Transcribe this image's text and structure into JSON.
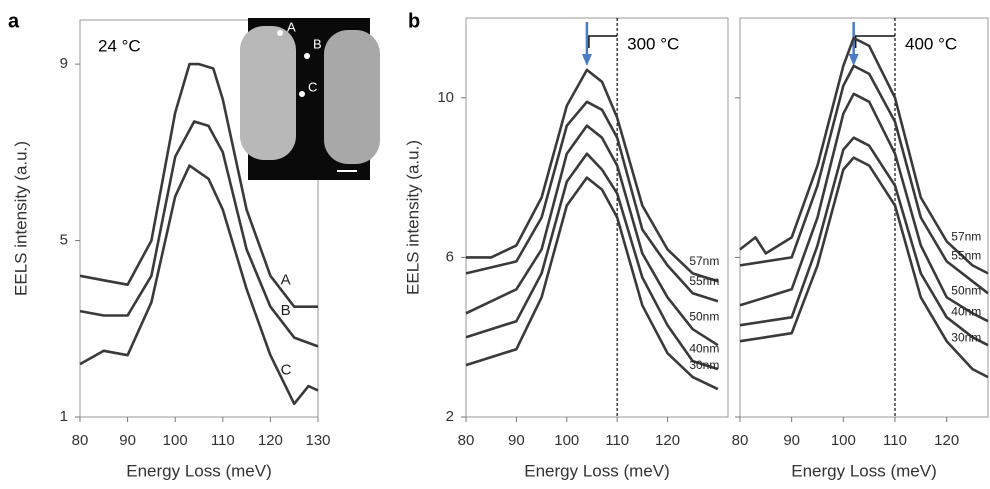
{
  "chart_data": [
    {
      "type": "line",
      "panel_label": "a",
      "annotation": "24 °C",
      "x_label": "Energy Loss (meV)",
      "y_label": "EELS intensity (a.u.)",
      "xlim": [
        80,
        130
      ],
      "xticks": [
        80,
        90,
        100,
        110,
        120,
        130
      ],
      "ylim": [
        1,
        10
      ],
      "yticks": [
        1,
        5,
        9
      ],
      "ytick_labels": true,
      "grid": false,
      "series": [
        {
          "name": "A",
          "color": "#3a3a3a",
          "x": [
            80,
            85,
            90,
            95,
            100,
            103,
            105,
            108,
            110,
            115,
            120,
            125,
            130
          ],
          "values": [
            4.2,
            4.1,
            4.0,
            5.0,
            7.9,
            9.0,
            9.0,
            8.9,
            8.2,
            5.7,
            4.2,
            3.5,
            3.5
          ]
        },
        {
          "name": "B",
          "color": "#3a3a3a",
          "x": [
            80,
            85,
            90,
            95,
            100,
            104,
            107,
            110,
            115,
            120,
            125,
            130
          ],
          "values": [
            3.4,
            3.3,
            3.3,
            4.2,
            6.9,
            7.7,
            7.6,
            7.0,
            4.8,
            3.5,
            2.8,
            2.6
          ]
        },
        {
          "name": "C",
          "color": "#3a3a3a",
          "x": [
            80,
            85,
            90,
            95,
            100,
            103,
            107,
            110,
            115,
            120,
            125,
            128,
            130
          ],
          "values": [
            2.2,
            2.5,
            2.4,
            3.6,
            6.0,
            6.7,
            6.4,
            5.7,
            3.9,
            2.4,
            1.3,
            1.7,
            1.6
          ]
        }
      ]
    },
    {
      "type": "line",
      "panel_label": "b",
      "annotation": "300 °C",
      "x_label": "Energy Loss (meV)",
      "y_label": "EELS intensity (a.u.)",
      "xlim": [
        80,
        132
      ],
      "xticks": [
        80,
        90,
        100,
        110,
        120
      ],
      "ylim": [
        2,
        12
      ],
      "yticks": [
        2,
        6,
        10
      ],
      "ytick_labels": true,
      "grid": false,
      "arrow_x": 104,
      "vline_x": 110,
      "arrow_color": "#4a7cc4",
      "series": [
        {
          "name": "57nm",
          "color": "#3a3a3a",
          "x": [
            80,
            85,
            90,
            95,
            100,
            104,
            107,
            110,
            115,
            120,
            125,
            130
          ],
          "values": [
            6.0,
            6.0,
            6.3,
            7.5,
            9.8,
            10.7,
            10.4,
            9.5,
            7.3,
            6.2,
            5.6,
            5.4
          ]
        },
        {
          "name": "55nm",
          "color": "#3a3a3a",
          "x": [
            80,
            90,
            95,
            100,
            104,
            107,
            110,
            115,
            120,
            125,
            130
          ],
          "values": [
            5.6,
            5.9,
            7.0,
            9.3,
            9.9,
            9.7,
            9.0,
            6.7,
            5.8,
            5.1,
            4.9
          ]
        },
        {
          "name": "50nm",
          "color": "#3a3a3a",
          "x": [
            80,
            90,
            95,
            100,
            104,
            107,
            110,
            115,
            120,
            125,
            130
          ],
          "values": [
            4.6,
            5.2,
            6.2,
            8.6,
            9.3,
            9.0,
            8.3,
            6.1,
            5.0,
            4.2,
            3.8
          ]
        },
        {
          "name": "40nm",
          "color": "#3a3a3a",
          "x": [
            80,
            90,
            95,
            100,
            104,
            107,
            110,
            115,
            120,
            125,
            130
          ],
          "values": [
            4.0,
            4.4,
            5.6,
            7.9,
            8.6,
            8.2,
            7.6,
            5.5,
            4.3,
            3.4,
            3.2
          ]
        },
        {
          "name": "30nm",
          "color": "#3a3a3a",
          "x": [
            80,
            90,
            95,
            100,
            104,
            107,
            110,
            115,
            120,
            125,
            130
          ],
          "values": [
            3.3,
            3.7,
            5.0,
            7.3,
            8.0,
            7.7,
            7.0,
            4.8,
            3.6,
            3.0,
            2.7
          ]
        }
      ]
    },
    {
      "type": "line",
      "annotation": "400 °C",
      "x_label": "Energy Loss (meV)",
      "xlim": [
        80,
        128
      ],
      "xticks": [
        80,
        90,
        100,
        110,
        120
      ],
      "ylim": [
        2,
        12
      ],
      "yticks": [
        2,
        6,
        10
      ],
      "ytick_labels": false,
      "grid": false,
      "arrow_x": 102,
      "vline_x": 110,
      "arrow_color": "#4a7cc4",
      "series": [
        {
          "name": "57nm",
          "color": "#3a3a3a",
          "x": [
            80,
            83,
            85,
            90,
            95,
            100,
            102,
            105,
            110,
            115,
            120,
            125,
            128
          ],
          "values": [
            6.2,
            6.5,
            6.1,
            6.5,
            8.3,
            10.8,
            11.5,
            11.3,
            10.0,
            7.5,
            6.4,
            5.8,
            5.6
          ]
        },
        {
          "name": "55nm",
          "color": "#3a3a3a",
          "x": [
            80,
            90,
            95,
            100,
            102,
            105,
            110,
            115,
            120,
            125,
            128
          ],
          "values": [
            5.8,
            6.0,
            7.8,
            10.3,
            10.8,
            10.6,
            9.4,
            7.0,
            5.9,
            5.4,
            5.1
          ]
        },
        {
          "name": "50nm",
          "color": "#3a3a3a",
          "x": [
            80,
            90,
            95,
            100,
            102,
            105,
            110,
            115,
            120,
            125,
            128
          ],
          "values": [
            4.8,
            5.2,
            7.0,
            9.6,
            10.1,
            9.9,
            8.6,
            6.3,
            5.0,
            4.6,
            4.4
          ]
        },
        {
          "name": "40nm",
          "color": "#3a3a3a",
          "x": [
            80,
            90,
            95,
            100,
            102,
            105,
            110,
            115,
            120,
            125,
            128
          ],
          "values": [
            4.3,
            4.5,
            6.3,
            8.7,
            9.0,
            8.8,
            7.8,
            5.6,
            4.5,
            4.0,
            3.8
          ]
        },
        {
          "name": "30nm",
          "color": "#3a3a3a",
          "x": [
            80,
            90,
            95,
            100,
            102,
            105,
            110,
            115,
            120,
            125,
            128
          ],
          "values": [
            3.9,
            4.1,
            5.8,
            8.2,
            8.5,
            8.3,
            7.3,
            5.0,
            3.9,
            3.2,
            3.0
          ]
        }
      ]
    }
  ]
}
